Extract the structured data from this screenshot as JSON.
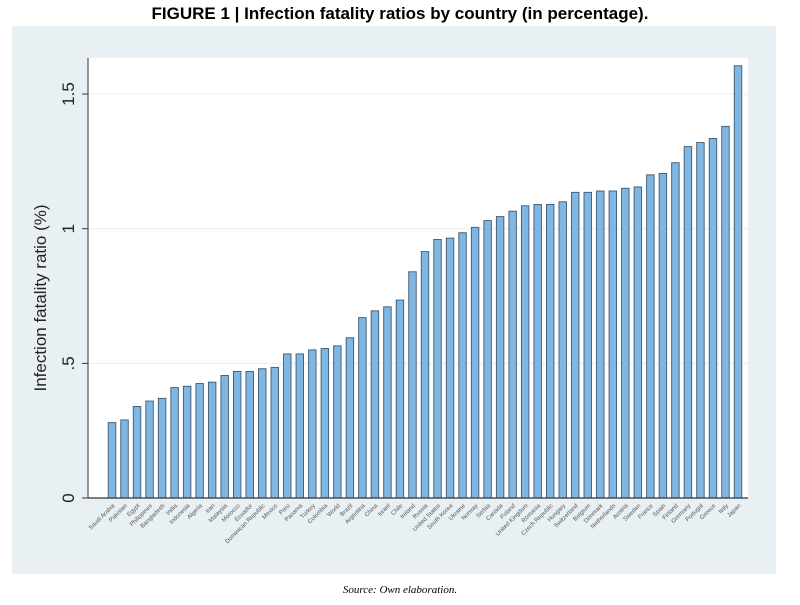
{
  "figure": {
    "title": "FIGURE 1 | Infection fatality ratios by country (in percentage).",
    "source": "Source: Own elaboration."
  },
  "colors": {
    "panel_bg": "#e8f0f4",
    "plot_bg": "#ffffff",
    "bar_fill": "#7fb6e2",
    "bar_stroke": "#3d5a74",
    "grid": "#ececec"
  },
  "chart_data": {
    "type": "bar",
    "title": "Infection fatality ratios by country (in percentage)",
    "xlabel": "",
    "ylabel": "Infection fatality ratio (%)",
    "ylim": [
      0,
      1.65
    ],
    "yticks": [
      0,
      0.5,
      1,
      1.5
    ],
    "ytick_labels": [
      "0",
      ".5",
      "1",
      "1.5"
    ],
    "grid": true,
    "categories": [
      "Saudi Arabia",
      "Pakistan",
      "Egypt",
      "Philippines",
      "Bangladesh",
      "India",
      "Indonesia",
      "Algeria",
      "Iran",
      "Malaysia",
      "Morocco",
      "Ecuador",
      "Dominican Republic",
      "Mexico",
      "Peru",
      "Panama",
      "Turkey",
      "Colombia",
      "World",
      "Brazil",
      "Argentina",
      "China",
      "Israel",
      "Chile",
      "Ireland",
      "Russia",
      "United States",
      "South Korea",
      "Ukraine",
      "Norway",
      "Serbia",
      "Canada",
      "Poland",
      "United Kingdom",
      "Romania",
      "Czech Republic",
      "Hungary",
      "Switzerland",
      "Belgium",
      "Denmark",
      "Netherlands",
      "Austria",
      "Sweden",
      "France",
      "Spain",
      "Finland",
      "Germany",
      "Portugal",
      "Greece",
      "Italy",
      "Japan"
    ],
    "values": [
      0.28,
      0.29,
      0.34,
      0.36,
      0.37,
      0.41,
      0.415,
      0.425,
      0.43,
      0.455,
      0.47,
      0.47,
      0.48,
      0.485,
      0.535,
      0.535,
      0.55,
      0.555,
      0.565,
      0.595,
      0.67,
      0.695,
      0.71,
      0.735,
      0.84,
      0.915,
      0.96,
      0.965,
      0.985,
      1.005,
      1.03,
      1.045,
      1.065,
      1.085,
      1.09,
      1.09,
      1.1,
      1.135,
      1.135,
      1.14,
      1.14,
      1.15,
      1.155,
      1.2,
      1.205,
      1.245,
      1.305,
      1.32,
      1.335,
      1.38,
      1.605
    ]
  }
}
